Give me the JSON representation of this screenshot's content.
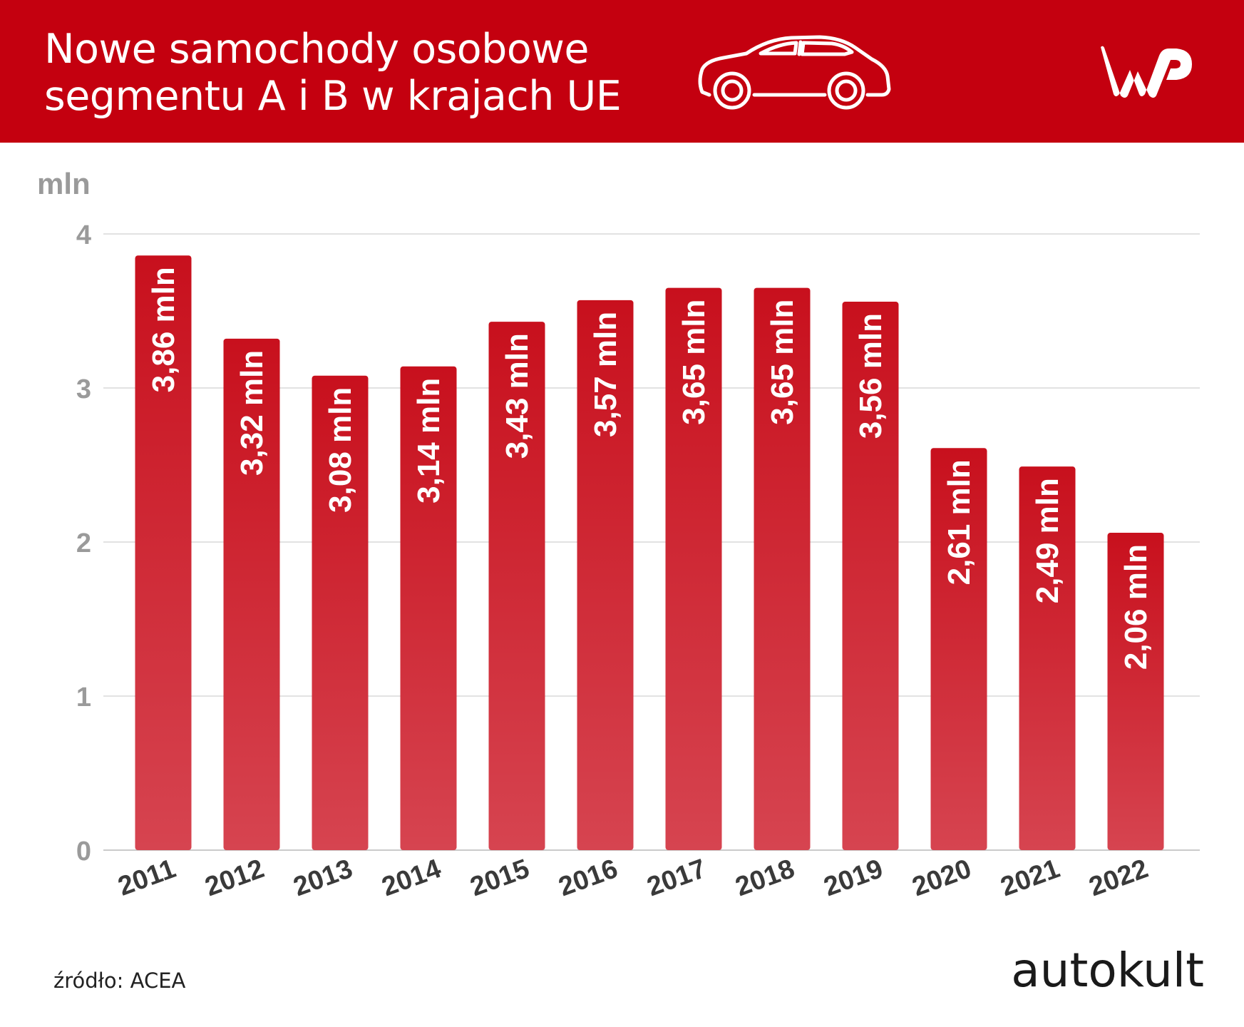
{
  "header": {
    "title_line1": "Nowe samochody osobowe",
    "title_line2": "segmentu A i B w krajach UE",
    "icon": "car-icon",
    "logo_text": "WP",
    "background_color": "#c4000f"
  },
  "footer": {
    "source": "źródło: ACEA",
    "brand": "autokult"
  },
  "chart_data": {
    "type": "bar",
    "ylabel": "mln",
    "ylim": [
      0,
      4
    ],
    "yticks": [
      0,
      1,
      2,
      3,
      4
    ],
    "grid": true,
    "bar_color": "#c8101d",
    "categories": [
      "2011",
      "2012",
      "2013",
      "2014",
      "2015",
      "2016",
      "2017",
      "2018",
      "2019",
      "2020",
      "2021",
      "2022"
    ],
    "values": [
      3.86,
      3.32,
      3.08,
      3.14,
      3.43,
      3.57,
      3.65,
      3.65,
      3.56,
      2.61,
      2.49,
      2.06
    ],
    "data_labels": [
      "3,86 mln",
      "3,32 mln",
      "3,08 mln",
      "3,14 mln",
      "3,43 mln",
      "3,57 mln",
      "3,65 mln",
      "3,65 mln",
      "3,56 mln",
      "2,61 mln",
      "2,49 mln",
      "2,06 mln"
    ]
  }
}
